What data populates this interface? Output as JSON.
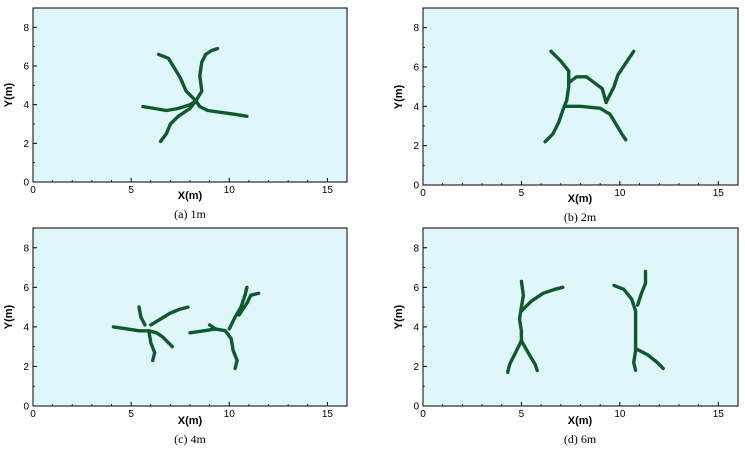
{
  "colors": {
    "plot_background": "#dff7fa",
    "crack": "#0f5a2c",
    "axis": "#000000"
  },
  "chart_data": [
    {
      "type": "line",
      "caption": "(a) 1m",
      "xlabel": "X(m)",
      "ylabel": "Y(m)",
      "xlim": [
        0,
        16
      ],
      "ylim": [
        0,
        9
      ],
      "xticks": [
        0,
        5,
        10,
        15
      ],
      "yticks": [
        0,
        2,
        4,
        6,
        8
      ],
      "grid": false,
      "series": [
        {
          "points": [
            [
              6.4,
              6.6
            ],
            [
              6.9,
              6.4
            ],
            [
              7.2,
              5.9
            ],
            [
              7.5,
              5.4
            ],
            [
              7.8,
              4.7
            ],
            [
              8.1,
              4.4
            ],
            [
              8.3,
              4.2
            ]
          ]
        },
        {
          "points": [
            [
              8.3,
              4.2
            ],
            [
              8.6,
              4.7
            ],
            [
              8.5,
              5.5
            ],
            [
              8.6,
              6.2
            ],
            [
              8.8,
              6.6
            ],
            [
              9.1,
              6.8
            ],
            [
              9.4,
              6.9
            ]
          ]
        },
        {
          "points": [
            [
              8.3,
              4.2
            ],
            [
              8.0,
              4.0
            ],
            [
              7.4,
              3.8
            ],
            [
              6.8,
              3.7
            ],
            [
              6.2,
              3.8
            ],
            [
              5.6,
              3.9
            ]
          ]
        },
        {
          "points": [
            [
              8.3,
              4.2
            ],
            [
              8.5,
              3.9
            ],
            [
              8.9,
              3.7
            ],
            [
              9.6,
              3.6
            ],
            [
              10.3,
              3.5
            ],
            [
              10.9,
              3.4
            ]
          ]
        },
        {
          "points": [
            [
              8.3,
              4.2
            ],
            [
              8.0,
              3.8
            ],
            [
              7.4,
              3.4
            ],
            [
              7.0,
              3.0
            ],
            [
              6.8,
              2.5
            ],
            [
              6.5,
              2.1
            ]
          ]
        }
      ]
    },
    {
      "type": "line",
      "caption": "(b) 2m",
      "xlabel": "X(m)",
      "ylabel": "Y(m)",
      "xlim": [
        0,
        16
      ],
      "ylim": [
        0,
        9
      ],
      "xticks": [
        0,
        5,
        10,
        15
      ],
      "yticks": [
        0,
        2,
        4,
        6,
        8
      ],
      "grid": false,
      "series": [
        {
          "points": [
            [
              6.5,
              6.8
            ],
            [
              7.0,
              6.3
            ],
            [
              7.4,
              5.8
            ],
            [
              7.4,
              5.0
            ],
            [
              7.3,
              4.3
            ],
            [
              7.1,
              3.8
            ],
            [
              6.9,
              3.2
            ],
            [
              6.6,
              2.6
            ],
            [
              6.2,
              2.2
            ]
          ]
        },
        {
          "points": [
            [
              7.4,
              5.2
            ],
            [
              7.8,
              5.5
            ],
            [
              8.3,
              5.5
            ],
            [
              8.7,
              5.2
            ],
            [
              9.1,
              4.9
            ],
            [
              9.3,
              4.2
            ]
          ]
        },
        {
          "points": [
            [
              9.3,
              4.2
            ],
            [
              9.7,
              5.0
            ],
            [
              9.9,
              5.6
            ],
            [
              10.3,
              6.2
            ],
            [
              10.7,
              6.8
            ]
          ]
        },
        {
          "points": [
            [
              7.2,
              4.0
            ],
            [
              8.0,
              4.0
            ],
            [
              9.0,
              3.9
            ],
            [
              9.5,
              3.6
            ],
            [
              9.8,
              3.1
            ],
            [
              10.1,
              2.6
            ],
            [
              10.3,
              2.3
            ]
          ]
        }
      ]
    },
    {
      "type": "line",
      "caption": "(c) 4m",
      "xlabel": "X(m)",
      "ylabel": "Y(m)",
      "xlim": [
        0,
        16
      ],
      "ylim": [
        0,
        9
      ],
      "xticks": [
        0,
        5,
        10,
        15
      ],
      "yticks": [
        0,
        2,
        4,
        6,
        8
      ],
      "grid": false,
      "series": [
        {
          "points": [
            [
              4.1,
              4.0
            ],
            [
              4.8,
              3.9
            ],
            [
              5.4,
              3.8
            ],
            [
              5.9,
              3.8
            ],
            [
              6.3,
              3.7
            ],
            [
              6.6,
              3.5
            ],
            [
              6.9,
              3.2
            ],
            [
              7.1,
              3.0
            ]
          ]
        },
        {
          "points": [
            [
              5.9,
              3.8
            ],
            [
              6.0,
              3.2
            ],
            [
              6.2,
              2.7
            ],
            [
              6.1,
              2.3
            ]
          ]
        },
        {
          "points": [
            [
              5.7,
              4.1
            ],
            [
              5.5,
              4.5
            ],
            [
              5.4,
              5.0
            ]
          ]
        },
        {
          "points": [
            [
              6.0,
              4.1
            ],
            [
              6.5,
              4.4
            ],
            [
              7.0,
              4.7
            ],
            [
              7.5,
              4.9
            ],
            [
              7.9,
              5.0
            ]
          ]
        },
        {
          "points": [
            [
              8.0,
              3.7
            ],
            [
              8.7,
              3.8
            ],
            [
              9.3,
              3.9
            ],
            [
              9.8,
              3.8
            ],
            [
              10.1,
              3.4
            ],
            [
              10.2,
              2.8
            ],
            [
              10.4,
              2.3
            ],
            [
              10.3,
              1.9
            ]
          ]
        },
        {
          "points": [
            [
              10.0,
              3.9
            ],
            [
              10.3,
              4.5
            ],
            [
              10.6,
              5.0
            ],
            [
              10.8,
              5.6
            ],
            [
              10.9,
              6.0
            ]
          ]
        },
        {
          "points": [
            [
              10.5,
              4.6
            ],
            [
              10.9,
              5.2
            ],
            [
              11.1,
              5.6
            ],
            [
              11.5,
              5.7
            ]
          ]
        },
        {
          "points": [
            [
              9.0,
              4.1
            ],
            [
              9.3,
              3.9
            ]
          ]
        }
      ]
    },
    {
      "type": "line",
      "caption": "(d) 6m",
      "xlabel": "X(m)",
      "ylabel": "Y(m)",
      "xlim": [
        0,
        16
      ],
      "ylim": [
        0,
        9
      ],
      "xticks": [
        0,
        5,
        10,
        15
      ],
      "yticks": [
        0,
        2,
        4,
        6,
        8
      ],
      "grid": false,
      "series": [
        {
          "points": [
            [
              5.0,
              6.3
            ],
            [
              5.1,
              5.6
            ],
            [
              5.0,
              5.0
            ],
            [
              4.9,
              4.4
            ],
            [
              5.0,
              3.8
            ],
            [
              5.0,
              3.3
            ]
          ]
        },
        {
          "points": [
            [
              5.0,
              3.3
            ],
            [
              4.7,
              2.7
            ],
            [
              4.4,
              2.1
            ],
            [
              4.3,
              1.7
            ]
          ]
        },
        {
          "points": [
            [
              5.0,
              3.3
            ],
            [
              5.4,
              2.6
            ],
            [
              5.7,
              2.1
            ],
            [
              5.8,
              1.8
            ]
          ]
        },
        {
          "points": [
            [
              5.0,
              4.8
            ],
            [
              5.5,
              5.3
            ],
            [
              6.1,
              5.7
            ],
            [
              6.7,
              5.9
            ],
            [
              7.1,
              6.0
            ]
          ]
        },
        {
          "points": [
            [
              9.7,
              6.1
            ],
            [
              10.2,
              5.9
            ],
            [
              10.6,
              5.4
            ],
            [
              10.8,
              4.8
            ],
            [
              10.8,
              4.0
            ],
            [
              10.8,
              3.4
            ],
            [
              10.8,
              2.8
            ],
            [
              10.7,
              2.2
            ],
            [
              10.8,
              1.8
            ]
          ]
        },
        {
          "points": [
            [
              10.8,
              2.9
            ],
            [
              11.4,
              2.6
            ],
            [
              11.9,
              2.2
            ],
            [
              12.2,
              1.9
            ]
          ]
        },
        {
          "points": [
            [
              10.9,
              5.1
            ],
            [
              11.1,
              5.7
            ],
            [
              11.3,
              6.2
            ],
            [
              11.3,
              6.8
            ]
          ]
        }
      ]
    }
  ]
}
